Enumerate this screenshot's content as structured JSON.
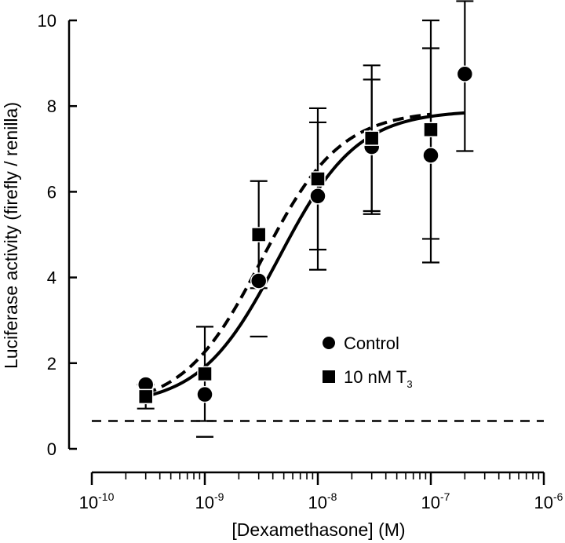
{
  "chart_data": {
    "type": "scatter",
    "xlabel": "[Dexamethasone] (M)",
    "ylabel": "Luciferase  activity (firefly / renilla)",
    "x_scale": "log",
    "xlim": [
      1e-10,
      1e-06
    ],
    "ylim": [
      0,
      10
    ],
    "x_tick_labels": [
      {
        "base": "10",
        "exp": "-10"
      },
      {
        "base": "10",
        "exp": "-9"
      },
      {
        "base": "10",
        "exp": "-8"
      },
      {
        "base": "10",
        "exp": "-7"
      },
      {
        "base": "10",
        "exp": "-6"
      }
    ],
    "y_ticks": [
      0,
      2,
      4,
      6,
      8,
      10
    ],
    "grid": false,
    "legend_position": "center-right",
    "series": [
      {
        "name": "Control",
        "marker": "circle",
        "x": [
          3e-10,
          1e-09,
          3e-09,
          1e-08,
          3e-08,
          1e-07,
          2e-07
        ],
        "y": [
          1.5,
          1.27,
          3.92,
          5.9,
          7.05,
          6.85,
          8.75
        ],
        "error": [
          0.0,
          0.0,
          0.0,
          1.72,
          1.57,
          2.5,
          0.0
        ],
        "fit": {
          "bottom": 1.0,
          "top": 7.9,
          "ec50": 4.5e-09,
          "hill": 1.25,
          "line_style": "solid"
        }
      },
      {
        "name": "10 nM T",
        "name_subscript": "3",
        "marker": "square",
        "x": [
          3e-10,
          1e-09,
          3e-09,
          1e-08,
          3e-08,
          1e-07
        ],
        "y": [
          1.22,
          1.75,
          5.0,
          6.3,
          7.25,
          7.45
        ],
        "error": [
          0.28,
          1.1,
          1.25,
          1.65,
          1.7,
          2.55
        ],
        "fit": {
          "bottom": 0.95,
          "top": 7.9,
          "ec50": 3.2e-09,
          "hill": 1.25,
          "line_style": "dashed"
        }
      }
    ],
    "extra_error_bars": [
      {
        "x": 3e-09,
        "y_low": 2.62,
        "y_high": 2.62
      },
      {
        "x": 1e-09,
        "y_low": 0.28,
        "y_high": 0.28
      },
      {
        "x": 2e-07,
        "y_low": 6.95,
        "y_high": 10.45
      }
    ],
    "baseline": {
      "y": 0.65,
      "line_style": "dashed"
    }
  }
}
